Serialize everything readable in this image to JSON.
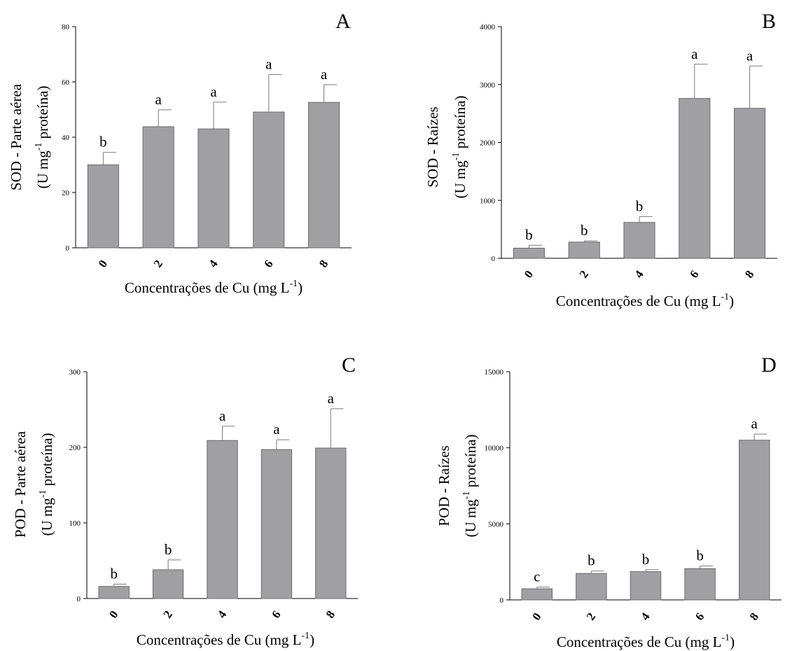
{
  "colors": {
    "bar_fill": "#a0a0a3",
    "bar_stroke": "#6b6b6e",
    "error_bar": "#7a7a7c",
    "axis": "#000000"
  },
  "chart_data": [
    {
      "panel": "A",
      "type": "bar",
      "categories": [
        "0",
        "2",
        "4",
        "6",
        "8"
      ],
      "values": [
        30,
        43.8,
        43,
        49.1,
        52.6
      ],
      "errors": [
        4.5,
        6.1,
        9.7,
        13.6,
        6.4
      ],
      "letters": [
        "b",
        "a",
        "a",
        "a",
        "a"
      ],
      "ylabel_line1": "SOD - Parte aérea",
      "ylabel_line2_pre": "(U mg",
      "ylabel_line2_sup": "-1",
      "ylabel_line2_post": " proteína)",
      "xlabel_pre": "Concentrações de Cu (mg L",
      "xlabel_sup": "-1",
      "xlabel_post": ")",
      "ylim": [
        0,
        80
      ],
      "yticks": [
        0,
        20,
        40,
        60,
        80
      ]
    },
    {
      "panel": "B",
      "type": "bar",
      "categories": [
        "0",
        "2",
        "4",
        "6",
        "8"
      ],
      "values": [
        175,
        280,
        620,
        2760,
        2590
      ],
      "errors": [
        50,
        20,
        100,
        590,
        730
      ],
      "letters": [
        "b",
        "b",
        "b",
        "a",
        "a"
      ],
      "ylabel_line1": "SOD - Raízes",
      "ylabel_line2_pre": "(U mg",
      "ylabel_line2_sup": "-1",
      "ylabel_line2_post": " proteína)",
      "xlabel_pre": "Concentrações de Cu (mg L",
      "xlabel_sup": "-1",
      "xlabel_post": ")",
      "ylim": [
        0,
        4000
      ],
      "yticks": [
        0,
        1000,
        2000,
        3000,
        4000
      ]
    },
    {
      "panel": "C",
      "type": "bar",
      "categories": [
        "0",
        "2",
        "4",
        "6",
        "8"
      ],
      "values": [
        16,
        38,
        209,
        197,
        199
      ],
      "errors": [
        3,
        13,
        19,
        13,
        52
      ],
      "letters": [
        "b",
        "b",
        "a",
        "a",
        "a"
      ],
      "ylabel_line1": "POD - Parte aérea",
      "ylabel_line2_pre": "(U mg",
      "ylabel_line2_sup": "-1",
      "ylabel_line2_post": " proteína)",
      "xlabel_pre": "Concentrações de Cu (mg L",
      "xlabel_sup": "-1",
      "xlabel_post": ")",
      "ylim": [
        0,
        300
      ],
      "yticks": [
        0,
        100,
        200,
        300
      ]
    },
    {
      "panel": "D",
      "type": "bar",
      "categories": [
        "0",
        "2",
        "4",
        "6",
        "8"
      ],
      "values": [
        730,
        1740,
        1860,
        2060,
        10500
      ],
      "errors": [
        110,
        160,
        130,
        170,
        400
      ],
      "letters": [
        "c",
        "b",
        "b",
        "b",
        "a"
      ],
      "ylabel_line1": "POD - Raízes",
      "ylabel_line2_pre": "(U mg",
      "ylabel_line2_sup": "-1",
      "ylabel_line2_post": " proteína)",
      "xlabel_pre": "Concentrações de Cu (mg L",
      "xlabel_sup": "-1",
      "xlabel_post": ")",
      "ylim": [
        0,
        15000
      ],
      "yticks": [
        0,
        5000,
        10000,
        15000
      ]
    }
  ]
}
